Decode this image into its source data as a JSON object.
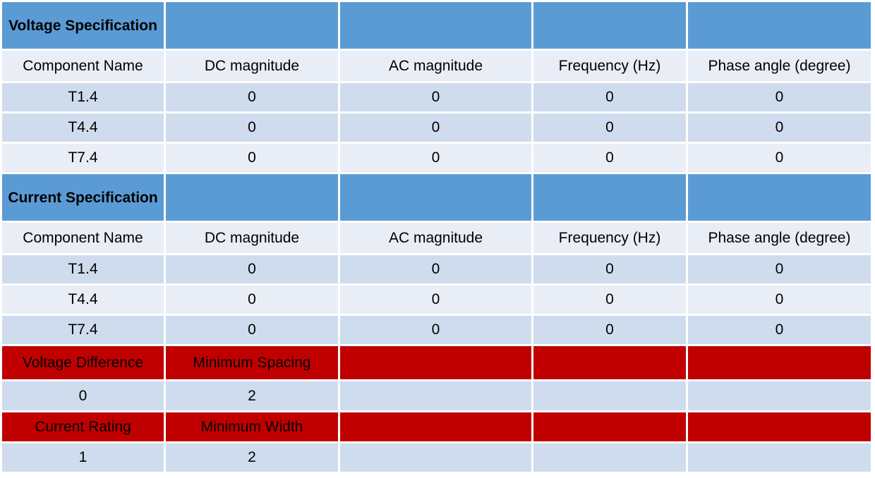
{
  "voltage_section": {
    "title": "Voltage Specification",
    "headers": [
      "Component Name",
      "DC magnitude",
      "AC magnitude",
      "Frequency (Hz)",
      "Phase angle (degree)"
    ],
    "rows": [
      [
        "T1.4",
        "0",
        "0",
        "0",
        "0"
      ],
      [
        "T4.4",
        "0",
        "0",
        "0",
        "0"
      ],
      [
        "T7.4",
        "0",
        "0",
        "0",
        "0"
      ]
    ]
  },
  "current_section": {
    "title": "Current Specification",
    "headers": [
      "Component Name",
      "DC magnitude",
      "AC magnitude",
      "Frequency (Hz)",
      "Phase angle (degree)"
    ],
    "rows": [
      [
        "T1.4",
        "0",
        "0",
        "0",
        "0"
      ],
      [
        "T4.4",
        "0",
        "0",
        "0",
        "0"
      ],
      [
        "T7.4",
        "0",
        "0",
        "0",
        "0"
      ]
    ]
  },
  "spacing": {
    "headers": [
      "Voltage Difference",
      "Minimum Spacing"
    ],
    "values": [
      "0",
      "2"
    ]
  },
  "width": {
    "headers": [
      "Current Rating",
      "Minimum Width"
    ],
    "values": [
      "1",
      "2"
    ]
  },
  "colors": {
    "section_header": "#5b9bd5",
    "row_light": "#e9edf6",
    "row_dark": "#cfdcee",
    "rule_header": "#c00000"
  }
}
